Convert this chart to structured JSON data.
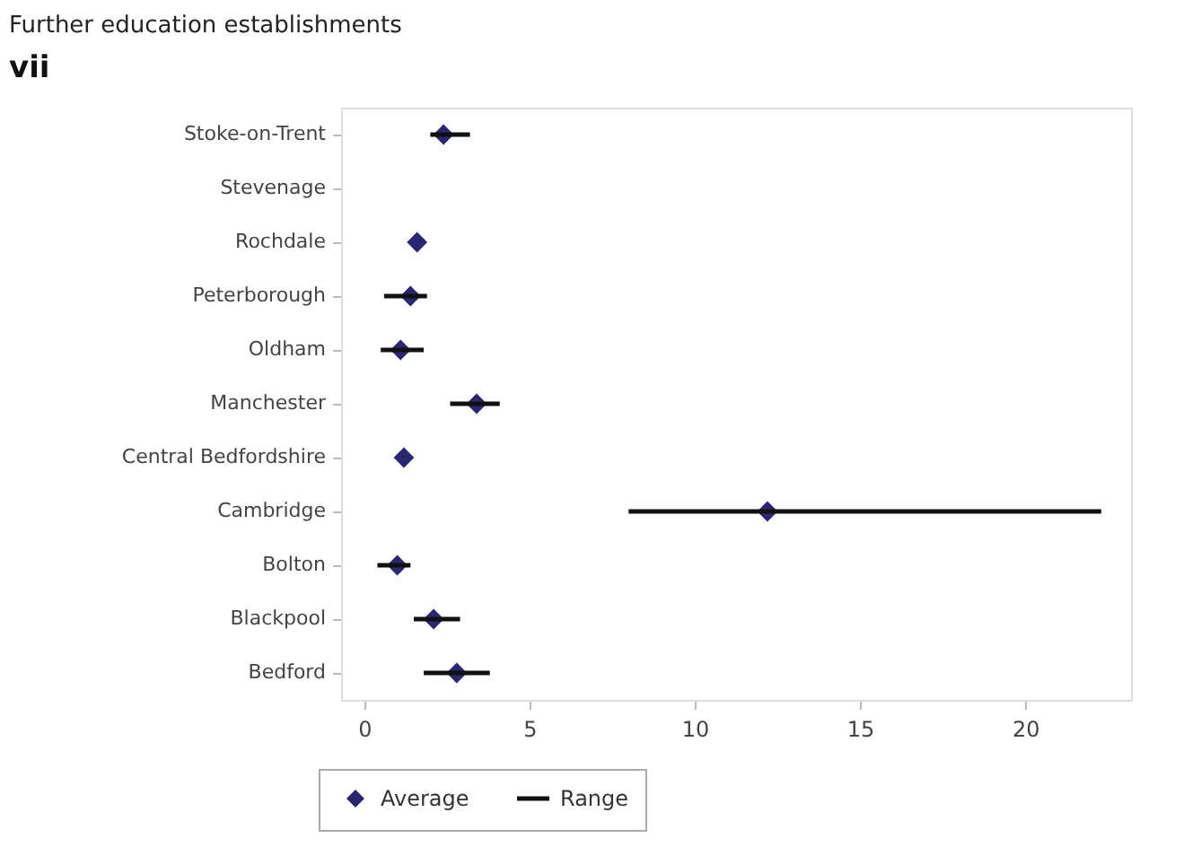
{
  "chart_data": {
    "type": "scatter",
    "orientation": "horizontal",
    "title": "Further education establishments",
    "annotations": [
      "vii",
      "Range"
    ],
    "categories": [
      "Stoke-on-Trent",
      "Stevenage",
      "Rochdale",
      "Peterborough",
      "Oldham",
      "Manchester",
      "Central Bedfordshire",
      "Cambridge",
      "Bolton",
      "Blackpool",
      "Bedford"
    ],
    "series": [
      {
        "name": "Average",
        "color": "#2b2670",
        "values": [
          2.4,
          null,
          1.6,
          1.4,
          1.1,
          3.4,
          1.2,
          12.2,
          1.0,
          2.1,
          2.8
        ],
        "errors": [
          [
            2.0,
            3.2
          ],
          null,
          null,
          [
            0.6,
            1.9
          ],
          [
            0.5,
            1.8
          ],
          [
            2.6,
            4.1
          ],
          null,
          [
            8.0,
            22.3
          ],
          [
            0.4,
            1.4
          ],
          [
            1.5,
            2.9
          ],
          [
            1.8,
            3.8
          ]
        ]
      }
    ],
    "xlim": [
      -0.7,
      23.2
    ],
    "xticks": [
      0,
      5,
      10,
      15,
      20
    ],
    "marker": "diamond",
    "legend": "bottom left",
    "grid": false
  }
}
